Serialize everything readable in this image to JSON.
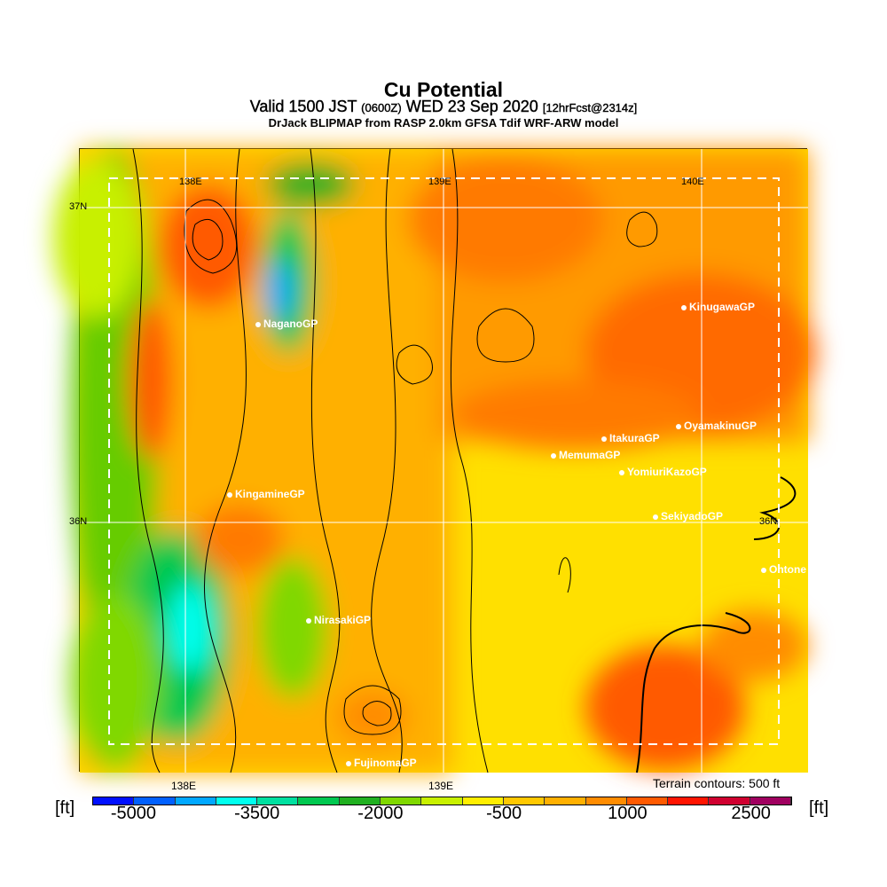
{
  "header": {
    "title": "Cu Potential",
    "valid": "Valid 1500 JST",
    "utc": "(0600Z)",
    "date": "WED 23 Sep 2020",
    "forecast": "[12hrFcst@2314z]",
    "model": "DrJack BLIPMAP from RASP 2.0km GFSA Tdif WRF-ARW model"
  },
  "map": {
    "lon_labels": [
      "138E",
      "139E",
      "140E"
    ],
    "lat_labels": [
      "37N",
      "36N",
      "36N"
    ],
    "bottom_lon_labels": [
      "138E",
      "139E"
    ],
    "cities": [
      "NaganoGP",
      "KinugawaGP",
      "OyamakinuGP",
      "ItakuraGP",
      "MemumaGP",
      "YomiuriKazoGP",
      "KingamineGP",
      "SekiyadoGP",
      "Ohtone",
      "NirasakiGP",
      "FujinomaGP"
    ]
  },
  "legend": {
    "terrain_note": "Terrain contours: 500 ft",
    "unit": "[ft]",
    "tick_labels": [
      "-5000",
      "-3500",
      "-2000",
      "-500",
      "1000",
      "2500"
    ],
    "colors": [
      "#0010ff",
      "#0060ff",
      "#00a8ff",
      "#00ffee",
      "#00e0a0",
      "#00c850",
      "#20b020",
      "#80d800",
      "#c8f000",
      "#ffee00",
      "#ffc800",
      "#ffb000",
      "#ff8c00",
      "#ff5a00",
      "#ff1400",
      "#d00030",
      "#a00060",
      "#600090"
    ]
  }
}
